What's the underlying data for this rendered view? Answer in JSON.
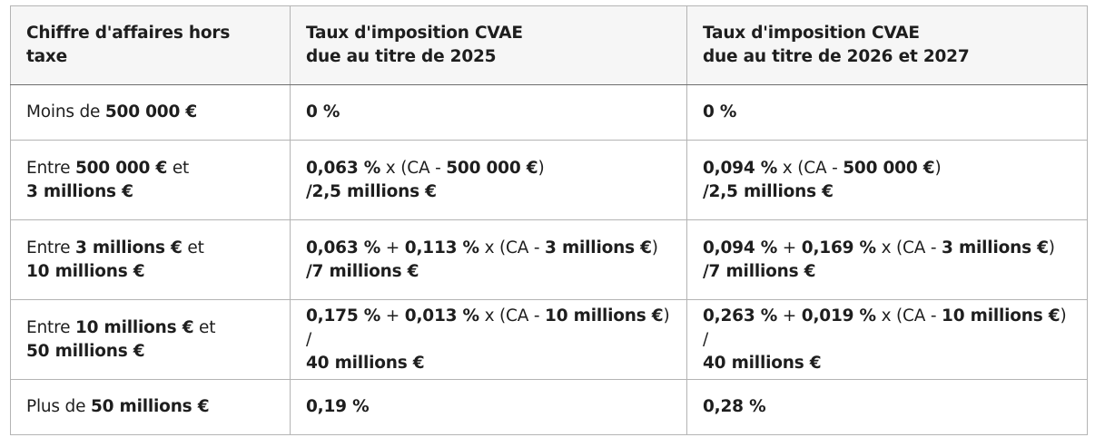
{
  "table": {
    "headers": [
      {
        "lines": [
          "Chiffre d'affaires hors taxe"
        ]
      },
      {
        "lines": [
          "Taux d'imposition CVAE",
          "due au titre de 2025"
        ]
      },
      {
        "lines": [
          "Taux d'imposition CVAE",
          "due au titre de 2026 et 2027"
        ]
      }
    ],
    "rows": [
      {
        "revenue": {
          "prefix": "Moins de ",
          "amount": "500 000 €"
        },
        "rate_2025": {
          "value": "0 %"
        },
        "rate_2026_2027": {
          "value": "0 %"
        }
      },
      {
        "revenue": {
          "prefix": "Entre ",
          "amount_low": "500 000 €",
          "conj": " et",
          "amount_high": "3 millions €"
        },
        "rate_2025": {
          "rate": "0,063 %",
          "op": " x (CA - ",
          "threshold": "500 000 €",
          "close": ")",
          "divisor": "/2,5 millions €"
        },
        "rate_2026_2027": {
          "rate": "0,094 %",
          "op": " x (CA - ",
          "threshold": "500 000 €",
          "close": ")",
          "divisor": "/2,5 millions €"
        }
      },
      {
        "revenue": {
          "prefix": "Entre ",
          "amount_low": "3 millions €",
          "conj": " et",
          "amount_high": "10 millions €"
        },
        "rate_2025": {
          "base": "0,063 %",
          "plus": " + ",
          "rate": "0,113 %",
          "op": " x (CA - ",
          "threshold": "3 millions €",
          "close": ")",
          "divisor": "/7 millions €"
        },
        "rate_2026_2027": {
          "base": "0,094 %",
          "plus": " + ",
          "rate": "0,169 %",
          "op": " x (CA - ",
          "threshold": "3 millions €",
          "close": ")",
          "divisor": "/7 millions €"
        }
      },
      {
        "revenue": {
          "prefix": "Entre ",
          "amount_low": "10 millions €",
          "conj": " et",
          "amount_high": "50 millions €"
        },
        "rate_2025": {
          "base": "0,175 %",
          "plus": " + ",
          "rate": "0,013 %",
          "op": " x (CA - ",
          "threshold": "10 millions €",
          "close": ") /",
          "divisor": "40 millions €"
        },
        "rate_2026_2027": {
          "base": "0,263 %",
          "plus": " + ",
          "rate": "0,019 %",
          "op": " x (CA - ",
          "threshold": "10 millions €",
          "close": ") /",
          "divisor": "40 millions €"
        }
      },
      {
        "revenue": {
          "prefix": "Plus de ",
          "amount": "50 millions €"
        },
        "rate_2025": {
          "value": "0,19 %"
        },
        "rate_2026_2027": {
          "value": "0,28 %"
        }
      }
    ]
  }
}
